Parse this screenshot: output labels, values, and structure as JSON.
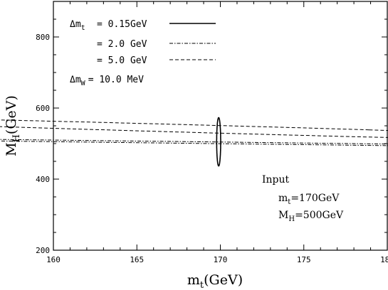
{
  "chart_data": {
    "type": "contour",
    "xlabel": {
      "main": "m",
      "sub": "t",
      "unit": "(GeV)"
    },
    "ylabel": {
      "main": "M",
      "sub": "H",
      "unit": "(GeV)"
    },
    "xlim": [
      160,
      180
    ],
    "ylim": [
      200,
      900
    ],
    "xticks": [
      160,
      165,
      170,
      175,
      180
    ],
    "xtick_labels": [
      "160",
      "165",
      "170",
      "175",
      "180"
    ],
    "yticks": [
      200,
      400,
      600,
      800
    ],
    "ytick_labels": [
      "200",
      "400",
      "600",
      "800"
    ],
    "grid": false,
    "legend_position": "top-left",
    "series": [
      {
        "name": "= 0.15GeV",
        "prefix": "Δm",
        "prefix_sub": "t",
        "style": "solid",
        "ellipse": {
          "center": [
            169.9,
            505
          ],
          "radius_x": 0.12,
          "radius_y": 68,
          "angle_deg": 0,
          "theta_offset_deg": 0
        }
      },
      {
        "name": "= 2.0 GeV",
        "style": "dashdot",
        "ellipse": {
          "center": [
            170.1,
            502
          ],
          "radius_x": 2.0,
          "radius_y": 93,
          "angle_deg": 61,
          "theta_offset_deg": 0
        }
      },
      {
        "name": "= 5.0 GeV",
        "style": "dashed",
        "ellipse": {
          "center": [
            170.0,
            540
          ],
          "radius_x": 6.5,
          "radius_y": 45,
          "angle_deg": 35,
          "theta_offset_deg": -8
        }
      }
    ],
    "legend_extra": {
      "prefix": "Δm",
      "prefix_sub": "W",
      "text": "= 10.0 MeV"
    },
    "annotation": {
      "title": "Input",
      "lines": [
        {
          "main": "m",
          "sub": "t",
          "value": "=170GeV"
        },
        {
          "main": "M",
          "sub": "H",
          "value": "=500GeV"
        }
      ]
    }
  }
}
